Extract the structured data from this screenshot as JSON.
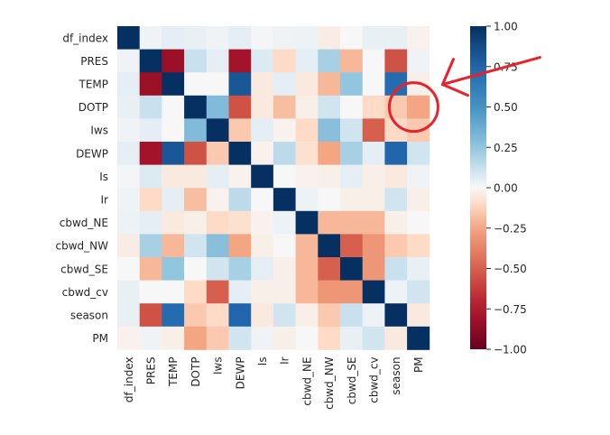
{
  "chart_data": {
    "type": "heatmap",
    "title": "",
    "xlabel": "",
    "ylabel": "",
    "variables": [
      "df_index",
      "PRES",
      "TEMP",
      "DOTP",
      "Iws",
      "DEWP",
      "Is",
      "Ir",
      "cbwd_NE",
      "cbwd_NW",
      "cbwd_SE",
      "cbwd_cv",
      "season",
      "PM"
    ],
    "matrix": [
      [
        1.0,
        0.02,
        0.05,
        0.04,
        0.02,
        0.05,
        0.01,
        0.02,
        0.03,
        -0.04,
        0.0,
        0.04,
        0.04,
        -0.02
      ],
      [
        0.02,
        1.0,
        -0.83,
        0.12,
        0.05,
        -0.8,
        0.07,
        -0.1,
        0.05,
        0.2,
        -0.2,
        0.0,
        -0.55,
        0.02
      ],
      [
        0.05,
        -0.83,
        1.0,
        0.0,
        0.0,
        0.82,
        -0.05,
        0.05,
        -0.05,
        -0.2,
        0.25,
        0.0,
        0.72,
        -0.03
      ],
      [
        0.04,
        0.12,
        0.0,
        1.0,
        0.3,
        -0.55,
        -0.05,
        -0.18,
        -0.03,
        0.1,
        0.0,
        -0.1,
        -0.15,
        -0.25
      ],
      [
        0.02,
        0.05,
        0.0,
        0.3,
        1.0,
        -0.15,
        0.05,
        -0.02,
        -0.1,
        0.28,
        0.1,
        -0.5,
        -0.1,
        -0.15
      ],
      [
        0.05,
        -0.8,
        0.82,
        -0.55,
        -0.15,
        1.0,
        -0.02,
        0.15,
        -0.08,
        -0.25,
        0.2,
        0.05,
        0.75,
        0.1
      ],
      [
        0.01,
        0.07,
        -0.05,
        -0.05,
        0.05,
        -0.02,
        1.0,
        0.0,
        -0.02,
        -0.03,
        0.05,
        -0.03,
        -0.05,
        0.02
      ],
      [
        0.02,
        -0.1,
        0.05,
        -0.18,
        -0.02,
        0.15,
        0.0,
        1.0,
        0.03,
        0.0,
        -0.03,
        -0.03,
        0.1,
        -0.03
      ],
      [
        0.03,
        0.05,
        -0.05,
        -0.03,
        -0.1,
        -0.08,
        -0.02,
        0.03,
        1.0,
        -0.2,
        -0.2,
        -0.2,
        -0.03,
        0.0
      ],
      [
        -0.04,
        0.2,
        -0.2,
        0.1,
        0.28,
        -0.25,
        -0.03,
        0.0,
        -0.2,
        1.0,
        -0.5,
        -0.3,
        -0.15,
        -0.1
      ],
      [
        0.0,
        -0.2,
        0.25,
        0.0,
        0.1,
        0.2,
        0.05,
        -0.03,
        -0.2,
        -0.5,
        1.0,
        -0.3,
        0.12,
        0.04
      ],
      [
        0.04,
        0.0,
        0.0,
        -0.1,
        -0.5,
        0.05,
        -0.03,
        -0.03,
        -0.2,
        -0.3,
        -0.3,
        1.0,
        0.03,
        0.1
      ],
      [
        0.04,
        -0.55,
        0.72,
        -0.15,
        -0.1,
        0.75,
        -0.05,
        0.1,
        -0.03,
        -0.15,
        0.12,
        0.03,
        1.0,
        -0.05
      ],
      [
        -0.02,
        0.02,
        -0.03,
        -0.25,
        -0.15,
        0.1,
        0.02,
        -0.03,
        0.0,
        -0.1,
        0.04,
        0.1,
        -0.05,
        1.0
      ]
    ],
    "colorbar": {
      "min": -1.0,
      "max": 1.0,
      "ticks": [
        1.0,
        0.75,
        0.5,
        0.25,
        0.0,
        -0.25,
        -0.5,
        -0.75,
        -1.0
      ],
      "tick_labels": [
        "1.00",
        "0.75",
        "0.50",
        "0.25",
        "0.00",
        "−0.25",
        "−0.50",
        "−0.75",
        "−1.00"
      ],
      "colormap": "RdBu_r",
      "colors": {
        "low": "#67001f",
        "mid": "#f7f7f7",
        "high": "#053061"
      }
    },
    "annotations": {
      "highlight": {
        "row": "DOTP",
        "col": "PM",
        "shape": "circle",
        "color": "#e8222a"
      },
      "arrow": {
        "points_to": "highlight",
        "color": "#e8222a"
      }
    }
  }
}
